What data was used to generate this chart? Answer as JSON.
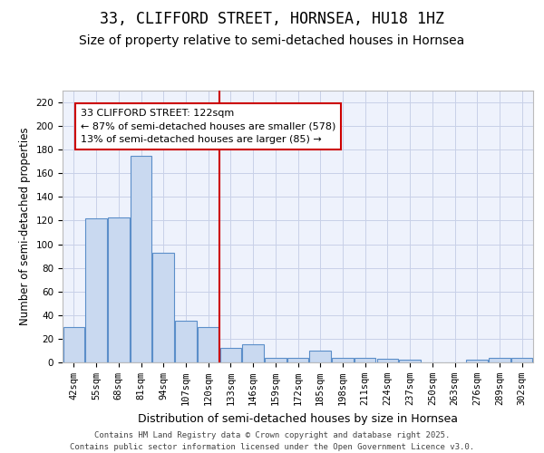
{
  "title": "33, CLIFFORD STREET, HORNSEA, HU18 1HZ",
  "subtitle": "Size of property relative to semi-detached houses in Hornsea",
  "xlabel": "Distribution of semi-detached houses by size in Hornsea",
  "ylabel": "Number of semi-detached properties",
  "categories": [
    "42sqm",
    "55sqm",
    "68sqm",
    "81sqm",
    "94sqm",
    "107sqm",
    "120sqm",
    "133sqm",
    "146sqm",
    "159sqm",
    "172sqm",
    "185sqm",
    "198sqm",
    "211sqm",
    "224sqm",
    "237sqm",
    "250sqm",
    "263sqm",
    "276sqm",
    "289sqm",
    "302sqm"
  ],
  "values": [
    30,
    122,
    123,
    175,
    93,
    35,
    30,
    12,
    15,
    4,
    4,
    10,
    4,
    4,
    3,
    2,
    0,
    0,
    2,
    4,
    4
  ],
  "bar_color": "#c9d9f0",
  "bar_edge_color": "#5b8ec9",
  "background_color": "#eef2fc",
  "grid_color": "#c8d0e8",
  "annotation_text": "33 CLIFFORD STREET: 122sqm\n← 87% of semi-detached houses are smaller (578)\n13% of semi-detached houses are larger (85) →",
  "annotation_box_color": "#ffffff",
  "annotation_border_color": "#cc0000",
  "red_line_color": "#cc0000",
  "property_line_index": 6.5,
  "ylim": [
    0,
    230
  ],
  "yticks": [
    0,
    20,
    40,
    60,
    80,
    100,
    120,
    140,
    160,
    180,
    200,
    220
  ],
  "footer_text": "Contains HM Land Registry data © Crown copyright and database right 2025.\nContains public sector information licensed under the Open Government Licence v3.0.",
  "title_fontsize": 12,
  "subtitle_fontsize": 10,
  "xlabel_fontsize": 9,
  "ylabel_fontsize": 8.5,
  "tick_fontsize": 7.5,
  "annotation_fontsize": 8,
  "footer_fontsize": 6.5
}
